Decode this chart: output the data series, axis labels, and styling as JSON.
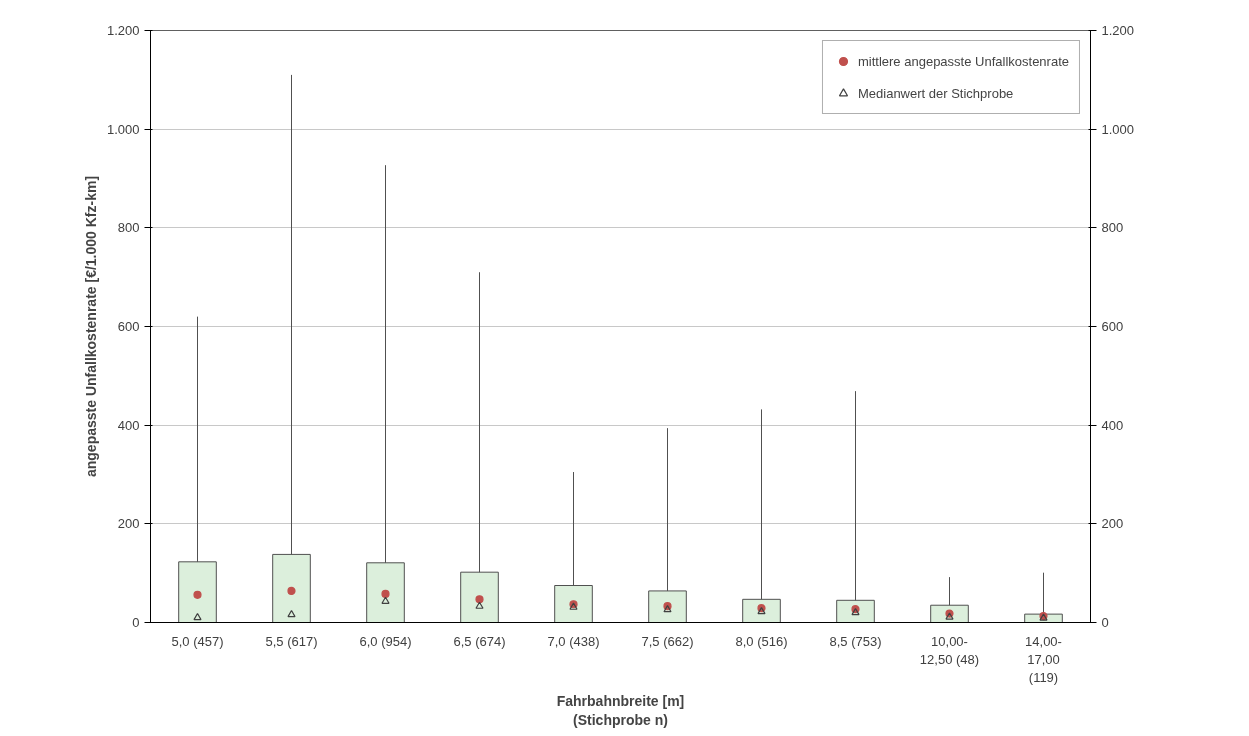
{
  "chart_data": {
    "type": "bar",
    "xlabel": "Fahrbahnbreite [m]\n(Stichprobe n)",
    "ylabel": "angepasste Unfallkostenrate [€/1.000 Kfz-km]",
    "categories": [
      "5,0 (457)",
      "5,5 (617)",
      "6,0 (954)",
      "6,5 (674)",
      "7,0 (438)",
      "7,5 (662)",
      "8,0 (516)",
      "8,5 (753)",
      "10,00-\n12,50 (48)",
      "14,00-\n17,00\n(119)"
    ],
    "series": [
      {
        "color": "#dcefdc",
        "values": [
          123,
          138,
          121,
          102,
          75,
          64,
          47,
          45,
          35,
          17
        ],
        "errors": [
          [
            123,
            620
          ],
          [
            138,
            1110
          ],
          [
            121,
            927
          ],
          [
            102,
            710
          ],
          [
            75,
            305
          ],
          [
            64,
            394
          ],
          [
            47,
            432
          ],
          [
            45,
            469
          ],
          [
            35,
            92
          ],
          [
            17,
            101
          ]
        ]
      },
      {
        "type": "scatter",
        "marker": "circle",
        "name": "mittlere angepasste Unfallkostenrate",
        "color": "#c0504d",
        "values": [
          56,
          64,
          58,
          47,
          37,
          33,
          29,
          27,
          18,
          13
        ]
      },
      {
        "type": "scatter",
        "marker": "triangle",
        "name": "Medianwert der Stichprobe",
        "color": "#404040",
        "values": [
          10,
          16,
          43,
          33,
          31,
          26,
          22,
          20,
          11,
          9
        ]
      }
    ],
    "ylim": [
      0,
      1200
    ],
    "yticks": [
      0,
      200,
      400,
      600,
      800,
      {
        "value": 1000,
        "label": "1.000"
      },
      {
        "value": 1200,
        "label": "1.200"
      }
    ],
    "y2lim": [
      0,
      1200
    ],
    "y2ticks": [
      0,
      200,
      400,
      600,
      800,
      {
        "value": 1000,
        "label": "1.000"
      },
      {
        "value": 1200,
        "label": "1.200"
      }
    ],
    "grid": "y",
    "legend": "top right"
  }
}
